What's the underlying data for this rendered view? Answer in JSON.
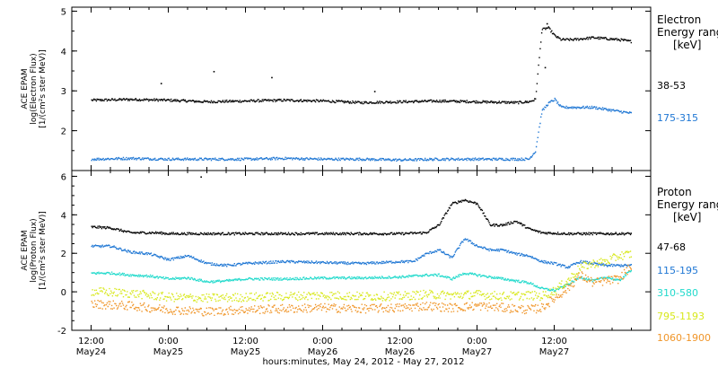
{
  "chart_data": [
    {
      "type": "scatter",
      "panel": "electron",
      "ylabel": [
        "ACE EPAM",
        "log(Electron Flux)",
        "[1/(cm²s ster MeV)]"
      ],
      "ylim": [
        1,
        5.1
      ],
      "yticks": [
        "2",
        "3",
        "4",
        "5"
      ],
      "legend_title": [
        "Electron",
        "Energy range",
        "[keV]"
      ],
      "x_range_hours": [
        -3,
        87
      ],
      "series": [
        {
          "name": "38-53",
          "color": "#000000",
          "points": [
            [
              0,
              2.78
            ],
            [
              6,
              2.8
            ],
            [
              12,
              2.78
            ],
            [
              18,
              2.74
            ],
            [
              24,
              2.76
            ],
            [
              30,
              2.78
            ],
            [
              36,
              2.76
            ],
            [
              42,
              2.72
            ],
            [
              48,
              2.74
            ],
            [
              54,
              2.76
            ],
            [
              60,
              2.74
            ],
            [
              66,
              2.72
            ],
            [
              68,
              2.74
            ],
            [
              69,
              2.8
            ],
            [
              70,
              4.55
            ],
            [
              71,
              4.6
            ],
            [
              72,
              4.4
            ],
            [
              73,
              4.3
            ],
            [
              75,
              4.3
            ],
            [
              78,
              4.35
            ],
            [
              82,
              4.3
            ],
            [
              84,
              4.25
            ]
          ],
          "spikes": [
            [
              10.8,
              3.2
            ],
            [
              19,
              3.5
            ],
            [
              28,
              3.35
            ],
            [
              44,
              3.0
            ],
            [
              70.5,
              3.6
            ],
            [
              70.8,
              4.7
            ]
          ]
        },
        {
          "name": "175-315",
          "color": "#1f77d4",
          "points": [
            [
              0,
              1.3
            ],
            [
              6,
              1.32
            ],
            [
              12,
              1.3
            ],
            [
              18,
              1.3
            ],
            [
              24,
              1.3
            ],
            [
              30,
              1.32
            ],
            [
              36,
              1.3
            ],
            [
              42,
              1.3
            ],
            [
              48,
              1.28
            ],
            [
              54,
              1.3
            ],
            [
              60,
              1.3
            ],
            [
              66,
              1.3
            ],
            [
              68,
              1.3
            ],
            [
              69,
              1.5
            ],
            [
              70,
              2.5
            ],
            [
              71,
              2.7
            ],
            [
              72,
              2.8
            ],
            [
              73,
              2.6
            ],
            [
              75,
              2.6
            ],
            [
              78,
              2.6
            ],
            [
              82,
              2.5
            ],
            [
              84,
              2.45
            ]
          ]
        }
      ]
    },
    {
      "type": "scatter",
      "panel": "proton",
      "ylabel": [
        "ACE EPAM",
        "log(Proton Flux)",
        "[1/(cm²s ster MeV)]"
      ],
      "ylim": [
        -2,
        6.3
      ],
      "yticks": [
        "-2",
        "0",
        "2",
        "4",
        "6"
      ],
      "legend_title": [
        "Proton",
        "Energy range",
        "[keV]"
      ],
      "xticks": [
        [
          "12:00",
          "May24"
        ],
        [
          "0:00",
          "May25"
        ],
        [
          "12:00",
          "May25"
        ],
        [
          "0:00",
          "May26"
        ],
        [
          "12:00",
          "May26"
        ],
        [
          "0:00",
          "May27"
        ],
        [
          "12:00",
          "May27"
        ]
      ],
      "xlabel": "hours:minutes, May 24, 2012 - May 27, 2012",
      "x_range_hours": [
        -3,
        87
      ],
      "series": [
        {
          "name": "47-68",
          "color": "#000000",
          "points": [
            [
              0,
              3.4
            ],
            [
              3,
              3.35
            ],
            [
              6,
              3.1
            ],
            [
              10,
              3.1
            ],
            [
              12,
              3.05
            ],
            [
              18,
              3.05
            ],
            [
              24,
              3.05
            ],
            [
              30,
              3.05
            ],
            [
              36,
              3.05
            ],
            [
              42,
              3.05
            ],
            [
              48,
              3.05
            ],
            [
              52,
              3.1
            ],
            [
              54,
              3.5
            ],
            [
              56,
              4.6
            ],
            [
              58,
              4.8
            ],
            [
              60,
              4.6
            ],
            [
              62,
              3.5
            ],
            [
              64,
              3.5
            ],
            [
              66,
              3.7
            ],
            [
              68,
              3.3
            ],
            [
              70,
              3.1
            ],
            [
              74,
              3.05
            ],
            [
              78,
              3.05
            ],
            [
              82,
              3.05
            ],
            [
              84,
              3.05
            ]
          ],
          "spikes": [
            [
              17,
              6.0
            ]
          ]
        },
        {
          "name": "115-195",
          "color": "#1f77d4",
          "points": [
            [
              0,
              2.4
            ],
            [
              3,
              2.4
            ],
            [
              6,
              2.1
            ],
            [
              9,
              2.0
            ],
            [
              12,
              1.7
            ],
            [
              15,
              1.9
            ],
            [
              18,
              1.5
            ],
            [
              21,
              1.4
            ],
            [
              24,
              1.5
            ],
            [
              30,
              1.6
            ],
            [
              36,
              1.55
            ],
            [
              42,
              1.5
            ],
            [
              48,
              1.6
            ],
            [
              50,
              1.6
            ],
            [
              52,
              2.0
            ],
            [
              54,
              2.2
            ],
            [
              56,
              1.8
            ],
            [
              58,
              2.8
            ],
            [
              60,
              2.4
            ],
            [
              62,
              2.2
            ],
            [
              64,
              2.2
            ],
            [
              66,
              2.0
            ],
            [
              68,
              1.9
            ],
            [
              70,
              1.6
            ],
            [
              72,
              1.5
            ],
            [
              74,
              1.3
            ],
            [
              76,
              1.6
            ],
            [
              78,
              1.5
            ],
            [
              80,
              1.4
            ],
            [
              84,
              1.4
            ]
          ]
        },
        {
          "name": "310-580",
          "color": "#22dacc",
          "points": [
            [
              0,
              1.0
            ],
            [
              3,
              1.0
            ],
            [
              6,
              0.9
            ],
            [
              9,
              0.85
            ],
            [
              12,
              0.7
            ],
            [
              15,
              0.75
            ],
            [
              18,
              0.55
            ],
            [
              21,
              0.6
            ],
            [
              24,
              0.7
            ],
            [
              30,
              0.7
            ],
            [
              36,
              0.75
            ],
            [
              42,
              0.75
            ],
            [
              48,
              0.8
            ],
            [
              52,
              0.9
            ],
            [
              54,
              0.9
            ],
            [
              56,
              0.7
            ],
            [
              58,
              1.0
            ],
            [
              60,
              0.9
            ],
            [
              62,
              0.8
            ],
            [
              64,
              0.7
            ],
            [
              66,
              0.6
            ],
            [
              68,
              0.5
            ],
            [
              70,
              0.2
            ],
            [
              72,
              0.1
            ],
            [
              74,
              0.4
            ],
            [
              76,
              0.8
            ],
            [
              78,
              0.6
            ],
            [
              80,
              0.8
            ],
            [
              82,
              0.6
            ],
            [
              84,
              1.2
            ]
          ]
        },
        {
          "name": "795-1193",
          "color": "#d8e81c",
          "points": [
            [
              0,
              0.05
            ],
            [
              6,
              -0.05
            ],
            [
              12,
              -0.25
            ],
            [
              18,
              -0.3
            ],
            [
              24,
              -0.25
            ],
            [
              30,
              -0.2
            ],
            [
              36,
              -0.15
            ],
            [
              42,
              -0.2
            ],
            [
              48,
              -0.2
            ],
            [
              52,
              -0.1
            ],
            [
              56,
              -0.15
            ],
            [
              60,
              -0.1
            ],
            [
              64,
              -0.2
            ],
            [
              68,
              -0.15
            ],
            [
              70,
              -0.2
            ],
            [
              72,
              0.1
            ],
            [
              74,
              0.6
            ],
            [
              76,
              1.3
            ],
            [
              78,
              1.5
            ],
            [
              80,
              1.6
            ],
            [
              82,
              1.9
            ],
            [
              84,
              2.0
            ]
          ]
        },
        {
          "name": "1060-1900",
          "color": "#f0962a",
          "points": [
            [
              0,
              -0.6
            ],
            [
              6,
              -0.7
            ],
            [
              12,
              -0.9
            ],
            [
              18,
              -1.0
            ],
            [
              24,
              -0.9
            ],
            [
              30,
              -0.85
            ],
            [
              36,
              -0.8
            ],
            [
              42,
              -0.85
            ],
            [
              48,
              -0.8
            ],
            [
              52,
              -0.7
            ],
            [
              56,
              -0.8
            ],
            [
              60,
              -0.7
            ],
            [
              64,
              -0.8
            ],
            [
              68,
              -0.9
            ],
            [
              70,
              -0.8
            ],
            [
              72,
              -0.3
            ],
            [
              74,
              0.2
            ],
            [
              76,
              0.9
            ],
            [
              78,
              0.5
            ],
            [
              80,
              0.6
            ],
            [
              82,
              0.7
            ],
            [
              84,
              1.4
            ]
          ]
        }
      ]
    }
  ]
}
